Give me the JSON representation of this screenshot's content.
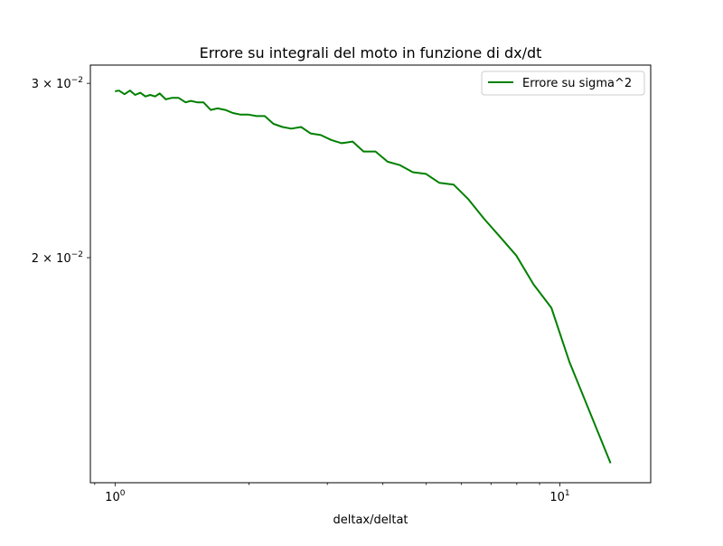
{
  "chart_data": {
    "type": "line",
    "title": "Errore su integrali del moto in funzione di dx/dt",
    "xlabel": "deltax/deltat",
    "ylabel": "",
    "xscale": "log",
    "yscale": "log",
    "xlim": [
      0.88,
      16.0
    ],
    "ylim": [
      0.01185,
      0.0313
    ],
    "grid": false,
    "legend_position": "top-right",
    "x_ticks": [
      {
        "value": 1,
        "base": "10",
        "exp": "0"
      },
      {
        "value": 10,
        "base": "10",
        "exp": "1"
      }
    ],
    "y_ticks": [
      {
        "value": 0.03,
        "mantissa": "3",
        "base": "10",
        "exp": "−2"
      },
      {
        "value": 0.02,
        "mantissa": "2",
        "base": "10",
        "exp": "−2"
      }
    ],
    "series": [
      {
        "name": "Errore su sigma^2",
        "color": "#008000",
        "x": [
          1.0,
          1.02,
          1.05,
          1.08,
          1.11,
          1.14,
          1.17,
          1.2,
          1.23,
          1.26,
          1.3,
          1.34,
          1.39,
          1.44,
          1.48,
          1.53,
          1.58,
          1.64,
          1.7,
          1.77,
          1.84,
          1.91,
          1.99,
          2.08,
          2.17,
          2.27,
          2.38,
          2.49,
          2.62,
          2.75,
          2.9,
          3.06,
          3.23,
          3.42,
          3.62,
          3.85,
          4.1,
          4.37,
          4.67,
          5.0,
          5.36,
          5.77,
          6.23,
          6.75,
          7.33,
          7.98,
          8.72,
          9.57,
          10.5,
          13.0
        ],
        "y": [
          0.02945,
          0.0295,
          0.02925,
          0.0295,
          0.0292,
          0.02935,
          0.0291,
          0.0292,
          0.0291,
          0.0293,
          0.0289,
          0.029,
          0.029,
          0.0287,
          0.0288,
          0.0287,
          0.0287,
          0.0282,
          0.0283,
          0.0282,
          0.028,
          0.0279,
          0.0279,
          0.0278,
          0.0278,
          0.0273,
          0.0271,
          0.027,
          0.0271,
          0.0267,
          0.0266,
          0.0263,
          0.0261,
          0.0262,
          0.0256,
          0.0256,
          0.025,
          0.0248,
          0.0244,
          0.0243,
          0.0238,
          0.0237,
          0.0229,
          0.0219,
          0.021,
          0.0201,
          0.0188,
          0.0178,
          0.0157,
          0.0124
        ]
      }
    ]
  }
}
